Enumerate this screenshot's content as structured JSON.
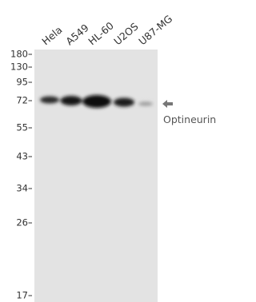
{
  "lanes": [
    "Hela",
    "A549",
    "HL-60",
    "U2OS",
    "U87-MG"
  ],
  "markers": [
    "180",
    "130",
    "95",
    "72",
    "55",
    "43",
    "34",
    "26",
    "17"
  ],
  "band_label": "Optineurin"
}
